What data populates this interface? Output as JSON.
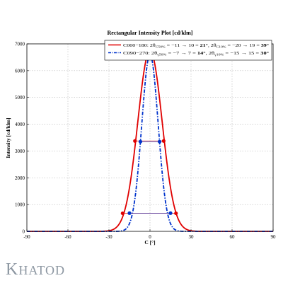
{
  "chart_data": {
    "type": "line",
    "title": "Rectangular Intensity Plot [cd/klm]",
    "xlabel": "C [°]",
    "ylabel": "Intensity [cd/klm]",
    "xlim": [
      -90,
      90
    ],
    "ylim": [
      0,
      7000
    ],
    "xticks": [
      -90,
      -60,
      -30,
      0,
      30,
      60,
      90
    ],
    "yticks": [
      0,
      1000,
      2000,
      3000,
      4000,
      5000,
      6000,
      7000
    ],
    "grid": true,
    "legend_position": "top",
    "series": [
      {
        "name": "C000–180: 2θC50% = −11 → 10 = 21°, 2θC10% = −20 → 19 = 39°",
        "color": "#e00000",
        "style": "solid",
        "peak": 6750,
        "sigma": 8.9,
        "markers": [
          {
            "x": -11,
            "y": 3375
          },
          {
            "x": 10,
            "y": 3375
          },
          {
            "x": -20,
            "y": 675
          },
          {
            "x": 19,
            "y": 675
          }
        ]
      },
      {
        "name": "C090–270: 2θγ50% = −7 → 7 = 14°, 2θγ10% = −15 → 15 = 30°",
        "color": "#0033cc",
        "style": "dashdot",
        "peak": 6600,
        "sigma": 6.0,
        "markers": [
          {
            "x": -7,
            "y": 3350
          },
          {
            "x": 7,
            "y": 3350
          },
          {
            "x": -15,
            "y": 680
          },
          {
            "x": 15,
            "y": 680
          }
        ]
      }
    ],
    "legend_rich": [
      [
        {
          "t": "C000−180: 2θ"
        },
        {
          "t": "C50%",
          "s": "sub"
        },
        {
          "t": " = −11 → 10 = "
        },
        {
          "t": "21",
          "b": true
        },
        {
          "t": "°, 2θ"
        },
        {
          "t": "C10%",
          "s": "sub"
        },
        {
          "t": " = −20 → 19 = "
        },
        {
          "t": "39°",
          "b": true
        }
      ],
      [
        {
          "t": "C090−270: 2θ"
        },
        {
          "t": "γ50%",
          "s": "sub"
        },
        {
          "t": " = −7 → 7 = "
        },
        {
          "t": "14",
          "b": true
        },
        {
          "t": "°, 2θ"
        },
        {
          "t": "γ10%",
          "s": "sub"
        },
        {
          "t": " = −15 → 15 = "
        },
        {
          "t": "30°",
          "b": true
        }
      ]
    ]
  },
  "logo": {
    "first": "K",
    "rest": "HATOD"
  }
}
